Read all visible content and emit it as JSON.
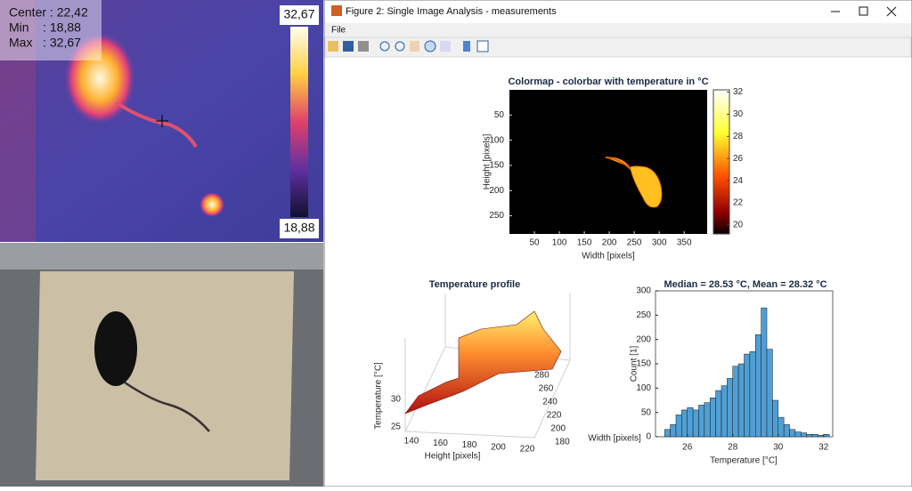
{
  "thermal": {
    "stats": [
      "Center : 22,42",
      "Min    : 18,88",
      "Max   : 32,67"
    ],
    "colorbar_max": "32,67",
    "colorbar_min": "18,88"
  },
  "window": {
    "title": "Figure 2: Single Image Analysis - measurements",
    "menu": [
      "File"
    ]
  },
  "colormap_plot": {
    "title": "Colormap - colorbar with temperature in °C",
    "xlabel": "Width [pixels]",
    "ylabel": "Height [pixels]",
    "xlim": [
      0,
      396
    ],
    "ylim": [
      0,
      286
    ],
    "xticks": [
      50,
      100,
      150,
      200,
      250,
      300,
      350
    ],
    "yticks": [
      50,
      100,
      150,
      200,
      250
    ],
    "clim": [
      19.2,
      32.2
    ],
    "cticks": [
      20,
      22,
      24,
      26,
      28,
      30,
      32
    ]
  },
  "profile_plot": {
    "title": "Temperature profile",
    "xlabel": "Height [pixels]",
    "ylabel": "Width [pixels]",
    "zlabel": "Temperature [°C]",
    "xticks": [
      140,
      160,
      180,
      200,
      220
    ],
    "yticks": [
      180,
      200,
      220,
      240,
      260,
      280
    ],
    "zticks": [
      25,
      30
    ]
  },
  "histogram": {
    "type": "histogram",
    "title": "Median = 28.53 °C, Mean = 28.32 °C",
    "xlabel": "Temperature [°C]",
    "ylabel": "Count [1]",
    "color": "#4f9fd4",
    "bins": [
      25.0,
      25.25,
      25.5,
      25.75,
      26.0,
      26.25,
      26.5,
      26.75,
      27.0,
      27.25,
      27.5,
      27.75,
      28.0,
      28.25,
      28.5,
      28.75,
      29.0,
      29.25,
      29.5,
      29.75,
      30.0,
      30.25,
      30.5,
      30.75,
      31.0,
      31.25,
      31.5,
      31.75,
      32.0,
      32.25
    ],
    "counts": [
      15,
      25,
      45,
      55,
      60,
      55,
      65,
      70,
      80,
      95,
      105,
      120,
      145,
      150,
      170,
      175,
      210,
      265,
      180,
      75,
      40,
      25,
      15,
      10,
      8,
      5,
      5,
      3,
      5
    ],
    "xlim": [
      24.6,
      32.4
    ],
    "ylim": [
      0,
      300
    ],
    "xticks": [
      26,
      28,
      30,
      32
    ],
    "yticks": [
      0,
      50,
      100,
      150,
      200,
      250,
      300
    ]
  }
}
